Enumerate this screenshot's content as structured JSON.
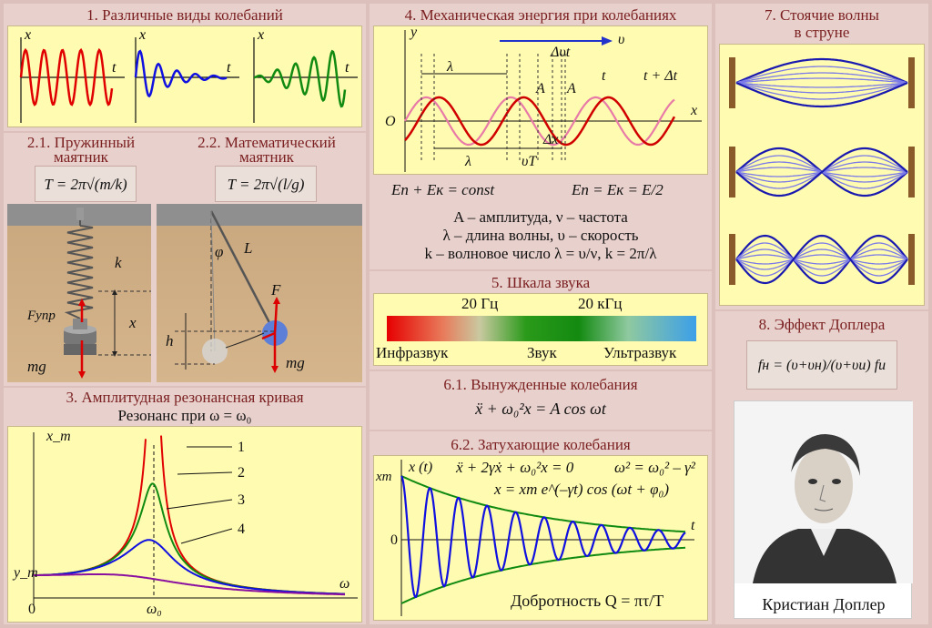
{
  "p1": {
    "title": "1. Различные виды колебаний",
    "x": "x",
    "t": "t"
  },
  "p21": {
    "title_a": "2.1. Пружинный",
    "title_b": "маятник",
    "formula": "T = 2π√(m/k)",
    "k": "k",
    "x": "x",
    "f": "Fупр",
    "mg": "mg"
  },
  "p22": {
    "title_a": "2.2. Математический",
    "title_b": "маятник",
    "formula": "T = 2π√(l/g)",
    "phi": "φ",
    "L": "L",
    "F": "F",
    "h": "h",
    "mg": "mg"
  },
  "p3": {
    "title": "3. Амплитудная резонансная кривая",
    "subtitle": "Резонанс при ω = ω₀",
    "xm": "x_m",
    "ym": "y_m",
    "omega": "ω",
    "omega0": "ω₀",
    "zero": "0",
    "labels": [
      "1",
      "2",
      "3",
      "4"
    ]
  },
  "p4": {
    "title": "4. Механическая энергия при колебаниях",
    "y": "y",
    "x": "x",
    "O": "O",
    "v": "υ",
    "lambda": "λ",
    "dvt": "Δυt",
    "A": "A",
    "t": "t",
    "tdt": "t + Δt",
    "dx": "Δx",
    "vT": "υT",
    "eq1": "Eп + Eк = const",
    "eq2": "Eп = Eк = E/2",
    "desc1": "A – амплитуда, ν – частота",
    "desc2": "λ – длина волны, υ – скорость",
    "desc3": "k – волновое число   λ = υ/ν, k = 2π/λ"
  },
  "p5": {
    "title": "5. Шкала звука",
    "f1": "20 Гц",
    "f2": "20 кГц",
    "infra": "Инфразвук",
    "sound": "Звук",
    "ultra": "Ультразвук"
  },
  "p61": {
    "title": "6.1. Вынужденные колебания",
    "eq": "ẍ + ω₀²x = A cos ωt"
  },
  "p62": {
    "title": "6.2. Затухающие колебания",
    "xm": "xm",
    "xt": "x (t)",
    "eq1": "ẍ + 2γẋ + ω₀²x = 0",
    "eq2": "ω² = ω₀² – γ²",
    "eq3": "x = xm e^(–γt) cos (ωt + φ₀)",
    "zero": "0",
    "t": "t",
    "q": "Добротность Q = πτ/T"
  },
  "p7": {
    "title_a": "7. Стоячие волны",
    "title_b": "в струне"
  },
  "p8": {
    "title": "8. Эффект Доплера",
    "formula": "fн = (υ+υн)/(υ+υи) fи",
    "caption": "Кристиан Доплер"
  }
}
